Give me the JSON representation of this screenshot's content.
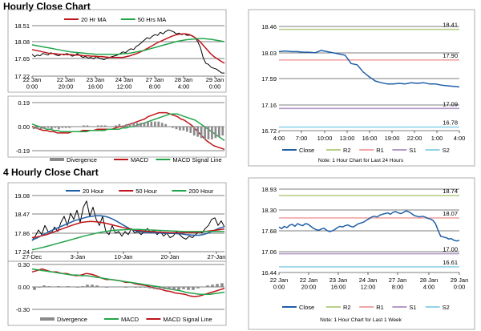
{
  "sections": {
    "hourly_title": "Hourly Close Chart",
    "four_hourly_title": "4 Hourly Close Chart"
  },
  "colors": {
    "close": "#1f5fa8",
    "ma_red": "#c0151b",
    "ma_green": "#22a54a",
    "macd_signal": "#22a54a",
    "bar": "#8a8a8a",
    "r2": "#b7cf8a",
    "r1": "#f2a5a5",
    "s1": "#b59ac8",
    "s2": "#8fd3e8",
    "frame": "#9a9a9a",
    "grid": "#000000"
  },
  "chart_data": [
    {
      "id": "hourly_price_ma",
      "type": "line",
      "legend": [
        "20 Hr MA",
        "50 Hrs MA"
      ],
      "y_ticks": [
        "18.51",
        "18.08",
        "17.65",
        "17.22"
      ],
      "ylim": [
        17.22,
        18.51
      ],
      "x_ticks": [
        "22 Jan\n0:00",
        "22 Jan\n20:00",
        "23 Jan\n16:00",
        "24 Jan\n12:00",
        "27 Jan\n8:00",
        "28 Jan\n4:00",
        "29 Jan\n0:00"
      ],
      "series": [
        {
          "name": "Close",
          "values": [
            17.78,
            17.72,
            17.76,
            17.74,
            17.8,
            17.78,
            17.76,
            17.82,
            17.79,
            17.76,
            17.74,
            17.78,
            17.76,
            17.8,
            17.77,
            17.73,
            17.75,
            17.8,
            17.74,
            17.7,
            17.72,
            17.68,
            17.7,
            17.66,
            17.72,
            17.68,
            17.66,
            17.64,
            17.68,
            17.7,
            17.72,
            17.74,
            17.76,
            17.8,
            17.84,
            17.82,
            17.88,
            17.92,
            17.9,
            17.98,
            18.02,
            18.08,
            18.14,
            18.2,
            18.18,
            18.24,
            18.28,
            18.26,
            18.34,
            18.3,
            18.36,
            18.4,
            18.38,
            18.35,
            18.3,
            18.32,
            18.28,
            18.3,
            18.26,
            18.27,
            18.24,
            18.2,
            18.1,
            17.95,
            17.7,
            17.55,
            17.52,
            17.45,
            17.42,
            17.4,
            17.35,
            17.3,
            17.3
          ]
        },
        {
          "name": "20 Hr MA",
          "values": [
            17.9,
            17.88,
            17.86,
            17.84,
            17.82,
            17.8,
            17.8,
            17.79,
            17.78,
            17.78,
            17.77,
            17.77,
            17.76,
            17.76,
            17.75,
            17.74,
            17.74,
            17.73,
            17.73,
            17.72,
            17.72,
            17.71,
            17.7,
            17.7,
            17.7,
            17.7,
            17.7,
            17.72,
            17.74,
            17.77,
            17.8,
            17.84,
            17.88,
            17.93,
            17.98,
            18.03,
            18.08,
            18.12,
            18.16,
            18.2,
            18.24,
            18.27,
            18.29,
            18.3,
            18.3,
            18.28,
            18.24,
            18.18,
            18.1,
            18.0,
            17.9,
            17.8,
            17.72,
            17.66,
            17.6,
            17.55
          ]
        },
        {
          "name": "50 Hrs MA",
          "values": [
            18.02,
            18.0,
            17.98,
            17.96,
            17.94,
            17.92,
            17.9,
            17.88,
            17.86,
            17.84,
            17.83,
            17.82,
            17.81,
            17.8,
            17.79,
            17.78,
            17.78,
            17.78,
            17.78,
            17.78,
            17.78,
            17.79,
            17.8,
            17.81,
            17.83,
            17.85,
            17.87,
            17.9,
            17.93,
            17.96,
            17.99,
            18.02,
            18.05,
            18.08,
            18.11,
            18.13,
            18.15,
            18.16,
            18.17,
            18.18,
            18.18,
            18.17,
            18.16,
            18.14,
            18.12,
            18.1
          ]
        }
      ]
    },
    {
      "id": "hourly_macd",
      "type": "line",
      "legend": [
        "Divergence",
        "MACD",
        "MACD Signal Line"
      ],
      "y_ticks": [
        "0.19",
        "0.00",
        "-0.19"
      ],
      "ylim": [
        -0.19,
        0.19
      ],
      "series": [
        {
          "name": "MACD",
          "values": [
            0.0,
            -0.01,
            -0.02,
            -0.03,
            -0.03,
            -0.04,
            -0.04,
            -0.05,
            -0.05,
            -0.05,
            -0.05,
            -0.04,
            -0.04,
            -0.04,
            -0.03,
            -0.03,
            -0.03,
            -0.03,
            -0.02,
            -0.02,
            -0.02,
            -0.02,
            -0.02,
            -0.01,
            0.0,
            0.0,
            0.01,
            0.02,
            0.03,
            0.04,
            0.05,
            0.06,
            0.08,
            0.09,
            0.1,
            0.11,
            0.11,
            0.11,
            0.1,
            0.09,
            0.08,
            0.06,
            0.05,
            0.03,
            0.01,
            -0.02,
            -0.05,
            -0.08,
            -0.11,
            -0.13,
            -0.15,
            -0.16,
            -0.17,
            -0.18
          ]
        },
        {
          "name": "MACD Signal Line",
          "values": [
            0.02,
            0.01,
            0.0,
            -0.01,
            -0.02,
            -0.02,
            -0.03,
            -0.03,
            -0.04,
            -0.04,
            -0.04,
            -0.04,
            -0.04,
            -0.04,
            -0.04,
            -0.04,
            -0.03,
            -0.03,
            -0.03,
            -0.03,
            -0.03,
            -0.02,
            -0.02,
            -0.02,
            -0.02,
            -0.01,
            -0.01,
            0.0,
            0.0,
            0.01,
            0.02,
            0.03,
            0.04,
            0.05,
            0.06,
            0.07,
            0.08,
            0.09,
            0.1,
            0.1,
            0.1,
            0.09,
            0.08,
            0.07,
            0.06,
            0.05,
            0.03,
            0.01,
            -0.01,
            -0.03,
            -0.05,
            -0.07,
            -0.09,
            -0.11
          ]
        },
        {
          "name": "Divergence",
          "values": [
            -0.02,
            -0.02,
            -0.02,
            -0.02,
            -0.01,
            -0.02,
            -0.01,
            -0.02,
            -0.01,
            -0.01,
            -0.01,
            0.0,
            0.0,
            0.0,
            0.01,
            0.01,
            0.0,
            0.0,
            0.01,
            0.01,
            0.01,
            0.0,
            0.0,
            0.01,
            0.02,
            0.01,
            0.02,
            0.02,
            0.03,
            0.03,
            0.03,
            0.03,
            0.04,
            0.04,
            0.04,
            0.04,
            0.03,
            0.02,
            0.0,
            -0.01,
            -0.02,
            -0.03,
            -0.03,
            -0.04,
            -0.05,
            -0.07,
            -0.08,
            -0.09,
            -0.1,
            -0.1,
            -0.1,
            -0.09,
            -0.08,
            -0.07
          ]
        }
      ]
    },
    {
      "id": "hourly_close_24h",
      "type": "line",
      "note": "Note: 1 Hour Chart for Last 24 Hours",
      "legend": [
        "Close",
        "R2",
        "R1",
        "S1",
        "S2"
      ],
      "y_ticks": [
        "18.46",
        "18.03",
        "17.59",
        "17.16",
        "16.72"
      ],
      "ylim": [
        16.72,
        18.46
      ],
      "x_ticks": [
        "4:00",
        "7:00",
        "10:00",
        "13:00",
        "16:00",
        "19:00",
        "22:00",
        "1:00",
        "4:00"
      ],
      "levels": [
        {
          "name": "R2",
          "value": 18.41,
          "label": "18.41"
        },
        {
          "name": "R1",
          "value": 17.9,
          "label": "17.90"
        },
        {
          "name": "S1",
          "value": 17.09,
          "label": "17.09"
        },
        {
          "name": "S2",
          "value": 16.78,
          "label": "16.78"
        }
      ],
      "series": [
        {
          "name": "Close",
          "values": [
            18.04,
            18.05,
            18.04,
            18.04,
            18.03,
            18.03,
            18.02,
            18.06,
            18.04,
            18.02,
            18.0,
            17.98,
            17.84,
            17.82,
            17.7,
            17.62,
            17.55,
            17.52,
            17.5,
            17.5,
            17.51,
            17.5,
            17.52,
            17.51,
            17.52,
            17.5,
            17.5,
            17.48,
            17.47,
            17.46,
            17.45
          ]
        }
      ]
    },
    {
      "id": "four_hourly_price_ma",
      "type": "line",
      "legend": [
        "20 Hour",
        "50 Hour",
        "200 Hour"
      ],
      "y_ticks": [
        "19.08",
        "18.47",
        "17.86",
        "17.24"
      ],
      "ylim": [
        17.24,
        19.08
      ],
      "x_ticks": [
        "27-Dec",
        "3-Jan",
        "10-Jan",
        "20-Jan",
        "27-Jan"
      ],
      "series": [
        {
          "name": "Close",
          "values": [
            17.6,
            17.75,
            17.95,
            17.8,
            18.1,
            17.9,
            17.85,
            18.05,
            17.9,
            18.2,
            18.4,
            18.1,
            18.5,
            18.3,
            18.6,
            18.2,
            18.7,
            18.9,
            18.4,
            18.7,
            18.3,
            18.1,
            18.4,
            17.9,
            17.8,
            18.1,
            17.85,
            17.9,
            17.75,
            17.9,
            17.8,
            18.0,
            17.85,
            17.9,
            17.8,
            17.9,
            18.0,
            17.85,
            17.95,
            17.8,
            17.9,
            17.75,
            17.85,
            17.7,
            17.75,
            17.9,
            17.8,
            17.7,
            17.65,
            17.75,
            17.7,
            17.8,
            17.9,
            17.85,
            18.0,
            18.1,
            18.3,
            18.35,
            18.1,
            18.25,
            18.05
          ]
        },
        {
          "name": "20 Hour",
          "values": [
            17.62,
            17.68,
            17.75,
            17.82,
            17.9,
            17.96,
            18.02,
            18.08,
            18.14,
            18.2,
            18.26,
            18.3,
            18.34,
            18.38,
            18.4,
            18.42,
            18.42,
            18.4,
            18.36,
            18.3,
            18.22,
            18.14,
            18.06,
            17.98,
            17.93,
            17.9,
            17.88,
            17.87,
            17.86,
            17.85,
            17.85,
            17.84,
            17.84,
            17.84,
            17.83,
            17.82,
            17.8,
            17.79,
            17.78,
            17.78,
            17.8,
            17.84,
            17.9,
            17.96,
            18.02,
            18.06
          ]
        },
        {
          "name": "50 Hour",
          "values": [
            17.7,
            17.72,
            17.76,
            17.8,
            17.86,
            17.92,
            17.98,
            18.04,
            18.1,
            18.15,
            18.2,
            18.22,
            18.23,
            18.22,
            18.2,
            18.17,
            18.13,
            18.09,
            18.05,
            18.01,
            17.98,
            17.95,
            17.93,
            17.91,
            17.9,
            17.89,
            17.88,
            17.87,
            17.86,
            17.86,
            17.86,
            17.86,
            17.86,
            17.87,
            17.88,
            17.9,
            17.92,
            17.94,
            17.96,
            17.98
          ]
        },
        {
          "name": "200 Hour",
          "values": [
            17.3,
            17.35,
            17.4,
            17.46,
            17.52,
            17.58,
            17.64,
            17.7,
            17.76,
            17.81,
            17.86,
            17.9,
            17.93,
            17.95,
            17.96,
            17.97,
            17.97,
            17.96,
            17.95,
            17.94,
            17.93,
            17.92,
            17.91,
            17.9,
            17.9,
            17.9,
            17.9,
            17.9,
            17.9,
            17.9
          ]
        }
      ]
    },
    {
      "id": "four_hourly_macd",
      "type": "line",
      "legend": [
        "Divergence",
        "MACD",
        "MACD Signal Line"
      ],
      "y_ticks": [
        "0.30",
        "0.00",
        "-0.30"
      ],
      "ylim": [
        -0.3,
        0.3
      ],
      "series": [
        {
          "name": "MACD",
          "values": [
            0.2,
            0.22,
            0.24,
            0.22,
            0.2,
            0.2,
            0.18,
            0.18,
            0.16,
            0.15,
            0.16,
            0.18,
            0.17,
            0.15,
            0.12,
            0.1,
            0.1,
            0.09,
            0.08,
            0.06,
            0.06,
            0.04,
            0.03,
            0.02,
            0.0,
            -0.02,
            -0.03,
            -0.05,
            -0.06,
            -0.08,
            -0.09,
            -0.1,
            -0.12,
            -0.13,
            -0.12,
            -0.1,
            -0.08,
            -0.06,
            -0.04,
            -0.02
          ]
        },
        {
          "name": "MACD Signal Line",
          "values": [
            0.24,
            0.23,
            0.22,
            0.21,
            0.2,
            0.19,
            0.18,
            0.17,
            0.16,
            0.16,
            0.15,
            0.15,
            0.14,
            0.13,
            0.12,
            0.11,
            0.1,
            0.09,
            0.08,
            0.07,
            0.06,
            0.05,
            0.04,
            0.03,
            0.02,
            0.01,
            0.0,
            -0.02,
            -0.03,
            -0.04,
            -0.05,
            -0.07,
            -0.08,
            -0.09,
            -0.1,
            -0.1,
            -0.1,
            -0.09,
            -0.08,
            -0.07
          ]
        },
        {
          "name": "Divergence",
          "values": [
            -0.04,
            -0.01,
            0.02,
            0.01,
            0.0,
            0.01,
            0.0,
            0.01,
            0.0,
            -0.01,
            0.01,
            0.03,
            0.03,
            0.02,
            0.0,
            -0.01,
            0.0,
            0.0,
            0.0,
            -0.01,
            0.0,
            -0.01,
            -0.01,
            -0.01,
            -0.02,
            -0.03,
            -0.03,
            -0.03,
            -0.03,
            -0.04,
            -0.04,
            -0.03,
            -0.04,
            -0.04,
            -0.02,
            0.0,
            0.02,
            0.03,
            0.04,
            0.05
          ]
        }
      ]
    },
    {
      "id": "hourly_close_week",
      "type": "line",
      "note": "Note: 1 Hour Chart for Last 1 Week",
      "legend": [
        "Close",
        "R2",
        "R1",
        "S1",
        "S2"
      ],
      "y_ticks": [
        "18.93",
        "18.30",
        "17.68",
        "17.06",
        "16.44"
      ],
      "ylim": [
        16.44,
        18.93
      ],
      "x_ticks": [
        "22 Jan\n0:00",
        "22 Jan\n20:00",
        "23 Jan\n16:00",
        "24 Jan\n12:00",
        "27 Jan\n8:00",
        "28 Jan\n4:00",
        "29 Jan\n0:00"
      ],
      "levels": [
        {
          "name": "R2",
          "value": 18.74,
          "label": "18.74"
        },
        {
          "name": "R1",
          "value": 18.07,
          "label": "18.07"
        },
        {
          "name": "S1",
          "value": 17.0,
          "label": "17.00"
        },
        {
          "name": "S2",
          "value": 16.61,
          "label": "16.61"
        }
      ],
      "series": [
        {
          "name": "Close",
          "values": [
            17.8,
            17.75,
            17.82,
            17.78,
            17.85,
            17.88,
            17.82,
            17.9,
            17.86,
            17.84,
            17.9,
            17.88,
            17.82,
            17.76,
            17.72,
            17.7,
            17.74,
            17.76,
            17.7,
            17.66,
            17.68,
            17.72,
            17.78,
            17.82,
            17.8,
            17.84,
            17.86,
            17.82,
            17.8,
            17.85,
            17.9,
            17.92,
            17.95,
            18.0,
            18.05,
            18.1,
            18.12,
            18.1,
            18.15,
            18.18,
            18.2,
            18.22,
            18.18,
            18.24,
            18.26,
            18.22,
            18.2,
            18.24,
            18.28,
            18.25,
            18.2,
            18.14,
            18.12,
            18.1,
            18.12,
            18.1,
            18.06,
            18.04,
            18.0,
            17.9,
            17.7,
            17.52,
            17.5,
            17.48,
            17.44,
            17.45,
            17.4,
            17.38,
            17.4
          ]
        }
      ]
    }
  ]
}
